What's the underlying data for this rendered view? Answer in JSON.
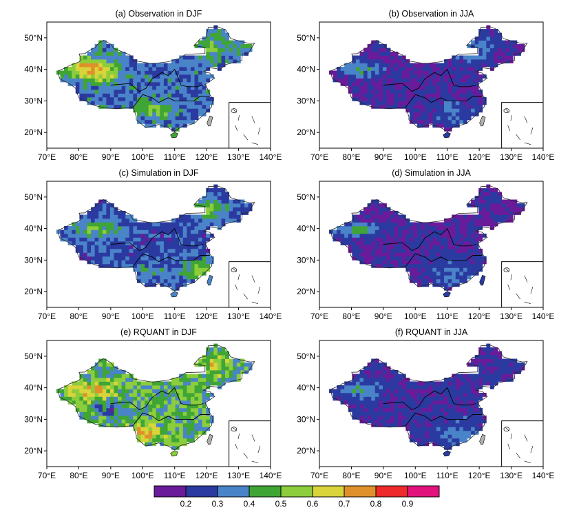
{
  "chart_data": {
    "type": "heatmap",
    "panels": [
      {
        "id": "a",
        "title": "(a)  Observation in DJF",
        "field": "obs_djf"
      },
      {
        "id": "b",
        "title": "(b)  Observation in JJA",
        "field": "obs_jja"
      },
      {
        "id": "c",
        "title": "(c)  Simulation in DJF",
        "field": "sim_djf"
      },
      {
        "id": "d",
        "title": "(d)  Simulation in JJA",
        "field": "sim_jja"
      },
      {
        "id": "e",
        "title": "(e)  RQUANT in DJF",
        "field": "rq_djf"
      },
      {
        "id": "f",
        "title": "(f)  RQUANT in JJA",
        "field": "rq_jja"
      }
    ],
    "x_ticks": [
      70,
      80,
      90,
      100,
      110,
      120,
      130,
      140
    ],
    "y_ticks": [
      20,
      30,
      40,
      50
    ],
    "x_tick_labels": [
      "70°E",
      "80°E",
      "90°E",
      "100°E",
      "110°E",
      "120°E",
      "130°E",
      "140°E"
    ],
    "y_tick_labels": [
      "20°N",
      "30°N",
      "40°N",
      "50°N"
    ],
    "xlim": [
      70,
      140
    ],
    "ylim": [
      15,
      55
    ],
    "colorbar": {
      "labels": [
        "0.2",
        "0.3",
        "0.4",
        "0.5",
        "0.6",
        "0.7",
        "0.8",
        "0.9"
      ],
      "colors": [
        "#6a1b9a",
        "#2b3aa0",
        "#4a84c8",
        "#3fa535",
        "#8ccd3c",
        "#d8d43a",
        "#e0902a",
        "#ee2a2a",
        "#e2137c"
      ]
    }
  }
}
